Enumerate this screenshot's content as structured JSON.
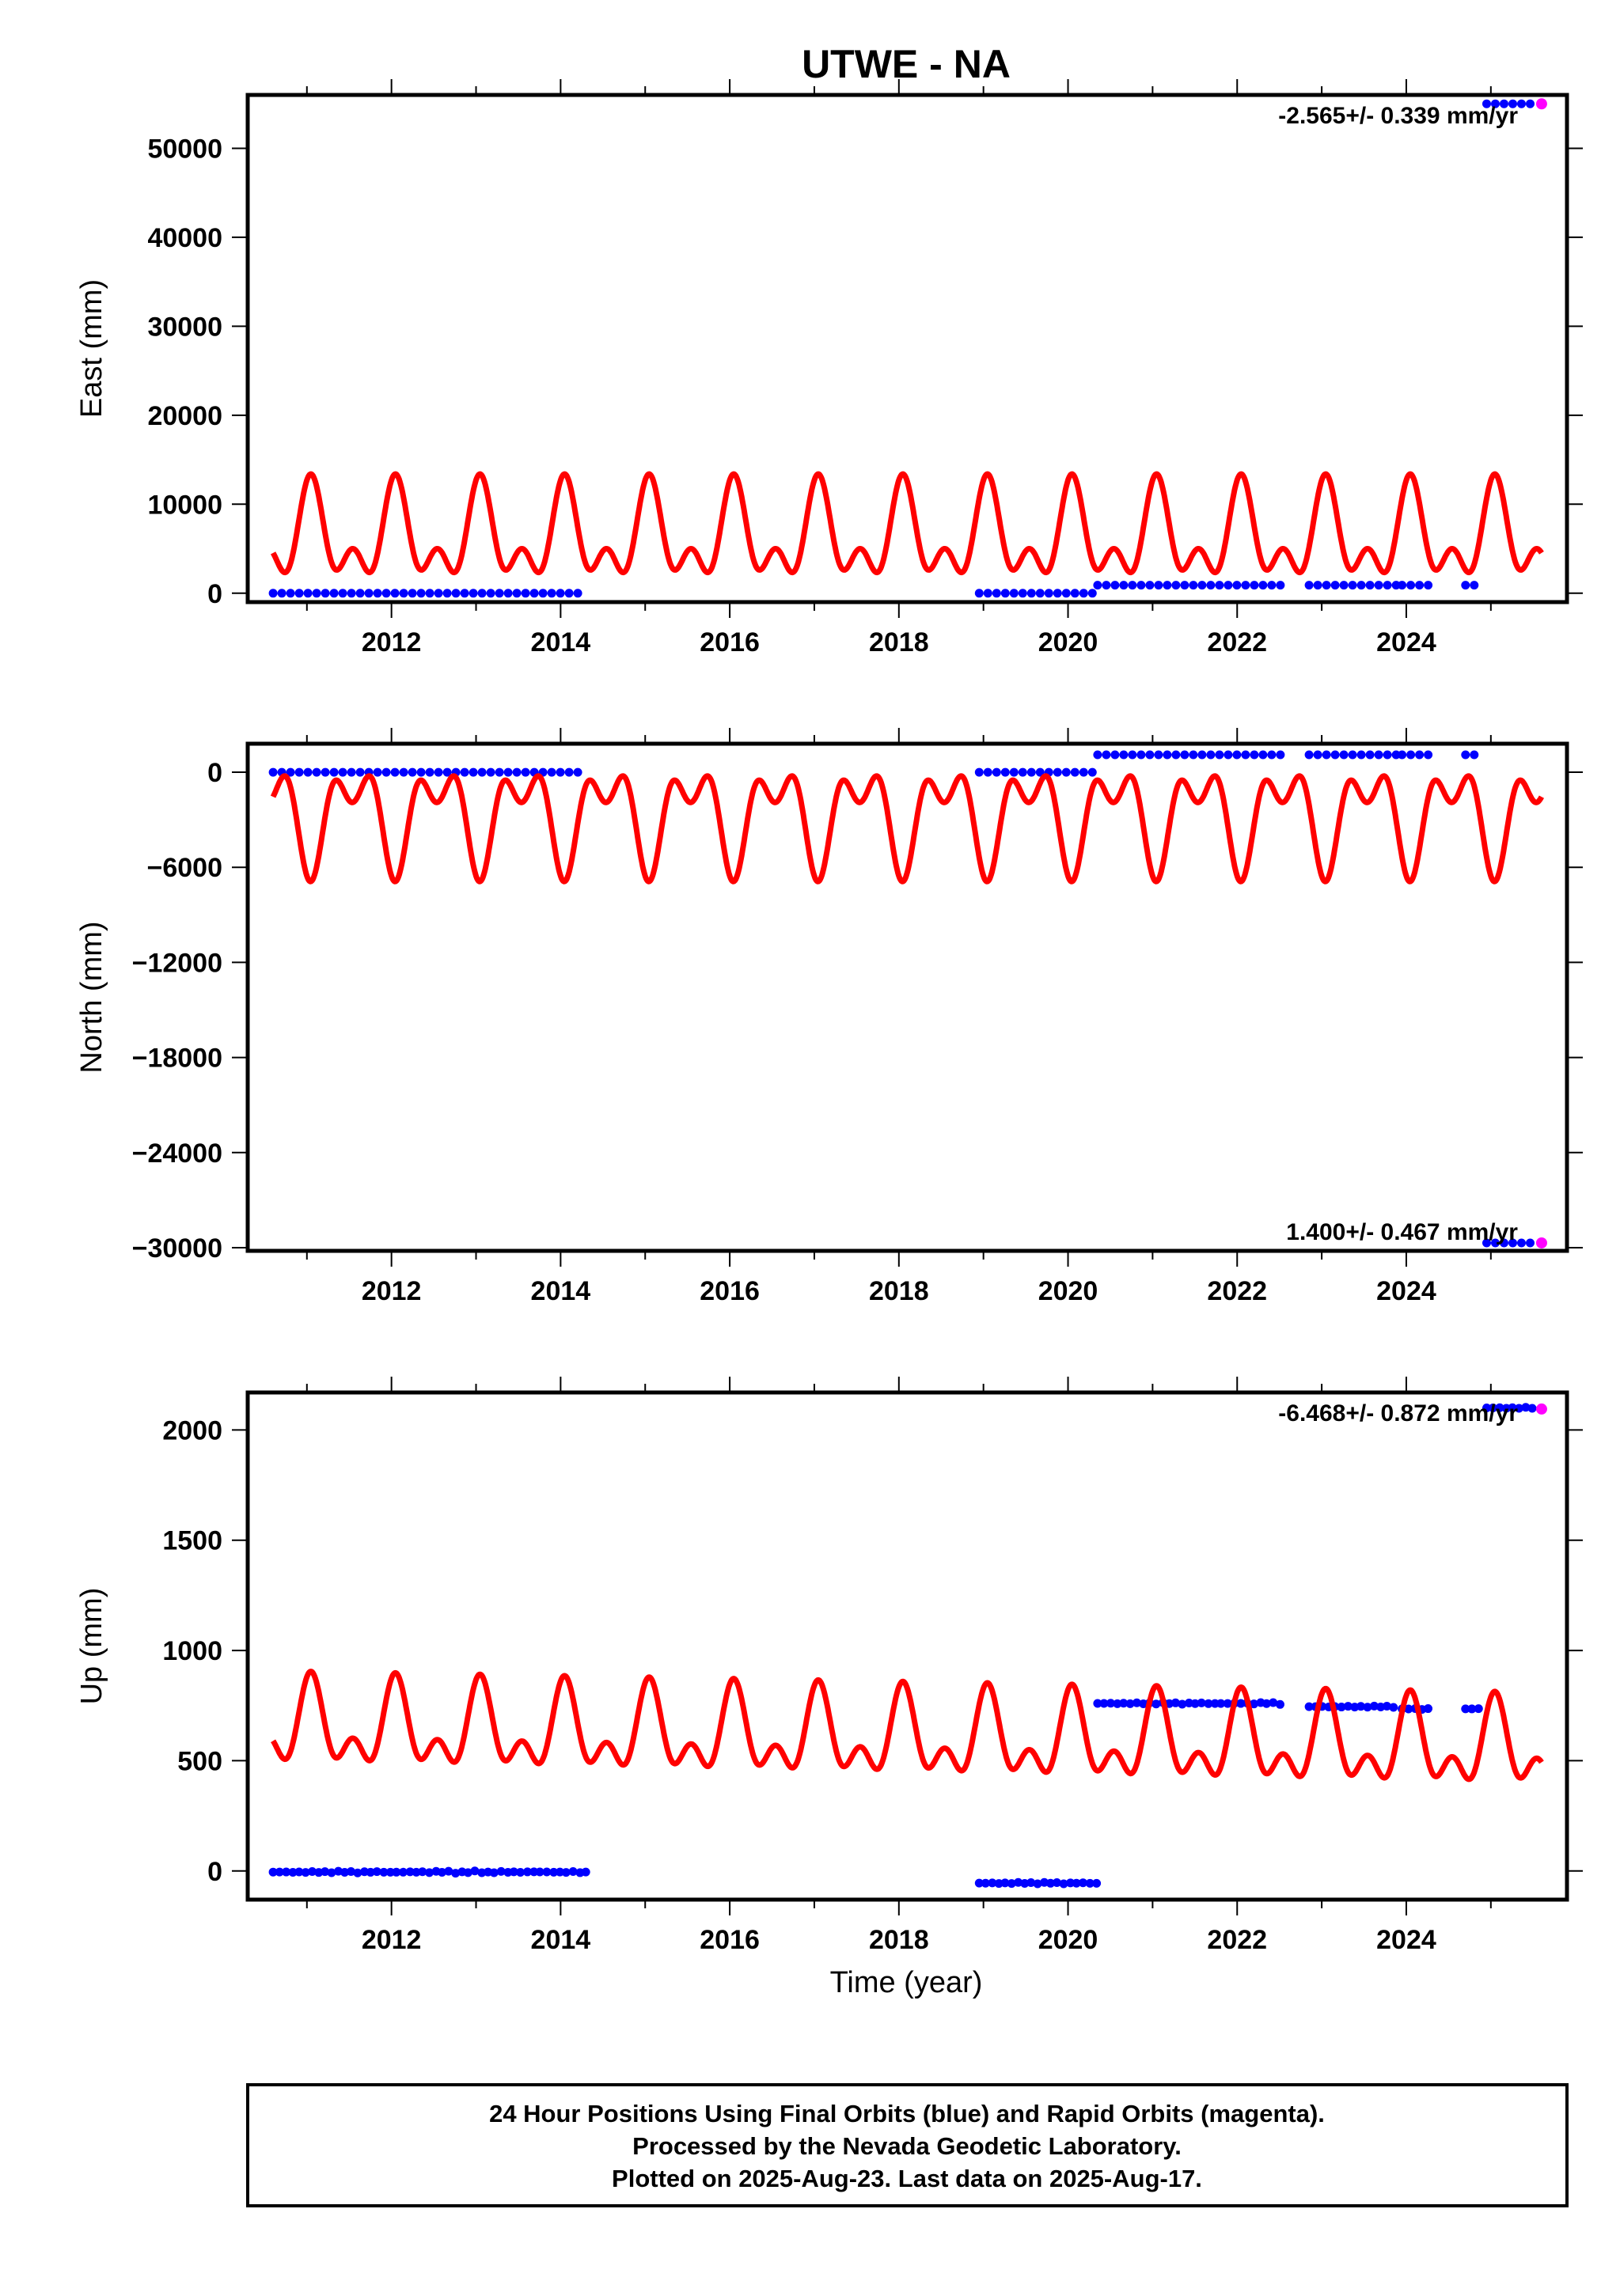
{
  "figure": {
    "title": "UTWE - NA",
    "xlabel": "Time (year)",
    "footer": [
      "24 Hour Positions Using Final Orbits (blue) and Rapid Orbits (magenta).",
      "Processed by the Nevada Geodetic Laboratory.",
      "Plotted on 2025-Aug-23. Last data on 2025-Aug-17."
    ]
  },
  "colors": {
    "final": "#0000ff",
    "rapid": "#ff00ff",
    "model": "#ff0000",
    "frame": "#000000"
  },
  "chart_data": [
    {
      "type": "scatter",
      "panel": "east",
      "ylabel": "East (mm)",
      "rate_label": "-2.565+/- 0.339 mm/yr",
      "xlim": [
        2010.3,
        2025.9
      ],
      "ylim": [
        -1000,
        56000
      ],
      "xticks": [
        2012,
        2014,
        2016,
        2018,
        2020,
        2022,
        2024
      ],
      "yticks": [
        0,
        10000,
        20000,
        30000,
        40000,
        50000
      ],
      "ytick_labels": [
        "0",
        "10000",
        "20000",
        "30000",
        "40000",
        "50000"
      ],
      "final_segments": [
        {
          "x0": 2010.6,
          "x1": 2014.3,
          "y": 0
        },
        {
          "x0": 2018.95,
          "x1": 2020.35,
          "y": 0
        },
        {
          "x0": 2020.35,
          "x1": 2022.55,
          "y": 900
        },
        {
          "x0": 2022.85,
          "x1": 2023.9,
          "y": 900
        },
        {
          "x0": 2023.95,
          "x1": 2024.3,
          "y": 900
        },
        {
          "x0": 2024.7,
          "x1": 2024.9,
          "y": 900
        },
        {
          "x0": 2024.95,
          "x1": 2025.55,
          "y": 55000
        }
      ],
      "rapid_points": [
        {
          "x": 2025.6,
          "y": 55000
        }
      ],
      "model": {
        "x0": 2010.6,
        "x1": 2025.6,
        "mean": 6200,
        "annual_amp": 4200,
        "annual_phase": 1.25,
        "semi_amp": 3000,
        "semi_phase": 1.0
      }
    },
    {
      "type": "scatter",
      "panel": "north",
      "ylabel": "North (mm)",
      "rate_label": "1.400+/- 0.467 mm/yr",
      "xlim": [
        2010.3,
        2025.9
      ],
      "ylim": [
        -30200,
        1800
      ],
      "xticks": [
        2012,
        2014,
        2016,
        2018,
        2020,
        2022,
        2024
      ],
      "yticks": [
        0,
        -6000,
        -12000,
        -18000,
        -24000,
        -30000
      ],
      "ytick_labels": [
        "0",
        "−6000",
        "−12000",
        "−18000",
        "−24000",
        "−30000"
      ],
      "final_segments": [
        {
          "x0": 2010.6,
          "x1": 2014.3,
          "y": 0
        },
        {
          "x0": 2018.95,
          "x1": 2020.35,
          "y": 0
        },
        {
          "x0": 2020.35,
          "x1": 2022.55,
          "y": 1100
        },
        {
          "x0": 2022.85,
          "x1": 2023.9,
          "y": 1100
        },
        {
          "x0": 2023.95,
          "x1": 2024.3,
          "y": 1100
        },
        {
          "x0": 2024.7,
          "x1": 2024.9,
          "y": 1100
        },
        {
          "x0": 2024.95,
          "x1": 2025.55,
          "y": -29700
        }
      ],
      "rapid_points": [
        {
          "x": 2025.6,
          "y": -29700
        }
      ],
      "model": {
        "x0": 2010.6,
        "x1": 2025.6,
        "mean": -2600,
        "annual_amp": 2500,
        "annual_phase": 4.4,
        "semi_amp": 1800,
        "semi_phase": 4.2
      }
    },
    {
      "type": "scatter",
      "panel": "up",
      "ylabel": "Up (mm)",
      "rate_label": "-6.468+/- 0.872 mm/yr",
      "xlim": [
        2010.3,
        2025.9
      ],
      "ylim": [
        -130,
        2170
      ],
      "xticks": [
        2012,
        2014,
        2016,
        2018,
        2020,
        2022,
        2024
      ],
      "yticks": [
        0,
        500,
        1000,
        1500,
        2000
      ],
      "ytick_labels": [
        "0",
        "500",
        "1000",
        "1500",
        "2000"
      ],
      "final_segments": [
        {
          "x0": 2010.6,
          "x1": 2014.3,
          "y": -5
        },
        {
          "x0": 2018.95,
          "x1": 2020.35,
          "y": -55
        },
        {
          "x0": 2020.35,
          "x1": 2022.55,
          "y": 760
        },
        {
          "x0": 2022.85,
          "x1": 2023.9,
          "y": 745
        },
        {
          "x0": 2023.95,
          "x1": 2024.3,
          "y": 735
        },
        {
          "x0": 2024.7,
          "x1": 2024.9,
          "y": 735
        },
        {
          "x0": 2024.95,
          "x1": 2025.55,
          "y": 2100
        }
      ],
      "rapid_points": [
        {
          "x": 2025.6,
          "y": 2095
        }
      ],
      "model": {
        "x0": 2010.6,
        "x1": 2025.6,
        "mean": 600,
        "trend": -6.5,
        "annual_amp": 150,
        "annual_phase": 1.25,
        "semi_amp": 110,
        "semi_phase": 1.0
      }
    }
  ]
}
